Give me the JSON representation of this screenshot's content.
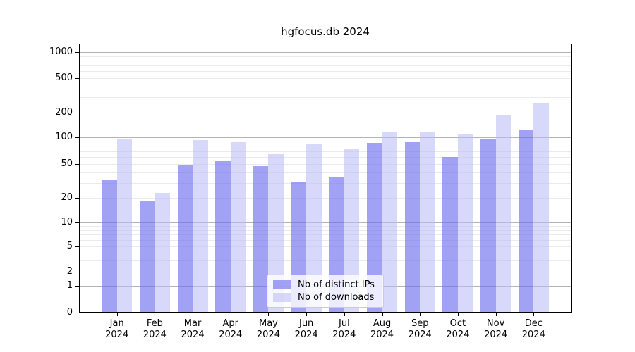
{
  "title": "hgfocus.db 2024",
  "chart_data": {
    "type": "bar",
    "title": "hgfocus.db 2024",
    "categories": [
      "Jan",
      "Feb",
      "Mar",
      "Apr",
      "May",
      "Jun",
      "Jul",
      "Aug",
      "Sep",
      "Oct",
      "Nov",
      "Dec"
    ],
    "category_year": "2024",
    "series": [
      {
        "name": "Nb of distinct IPs",
        "color": "#a5a5f1",
        "values": [
          32,
          18,
          49,
          55,
          47,
          31,
          35,
          87,
          90,
          60,
          95,
          125
        ]
      },
      {
        "name": "Nb of downloads",
        "color": "#d9d9f8",
        "values": [
          95,
          23,
          93,
          89,
          65,
          84,
          75,
          118,
          116,
          110,
          190,
          260
        ]
      }
    ],
    "xlabel": "",
    "ylabel": "",
    "yscale": "log",
    "yticks": [
      0,
      1,
      2,
      5,
      10,
      20,
      50,
      100,
      200,
      500,
      1000
    ],
    "ylim": [
      0,
      1250
    ],
    "grid": "both",
    "legend_position": "lower-center"
  },
  "colors": {
    "bar_distinct_ips": "#a5a5f1",
    "bar_downloads": "#d9d9f8",
    "grid_major": "#b4b4b8",
    "grid_minor": "#ebebee",
    "spine": "#000000"
  }
}
